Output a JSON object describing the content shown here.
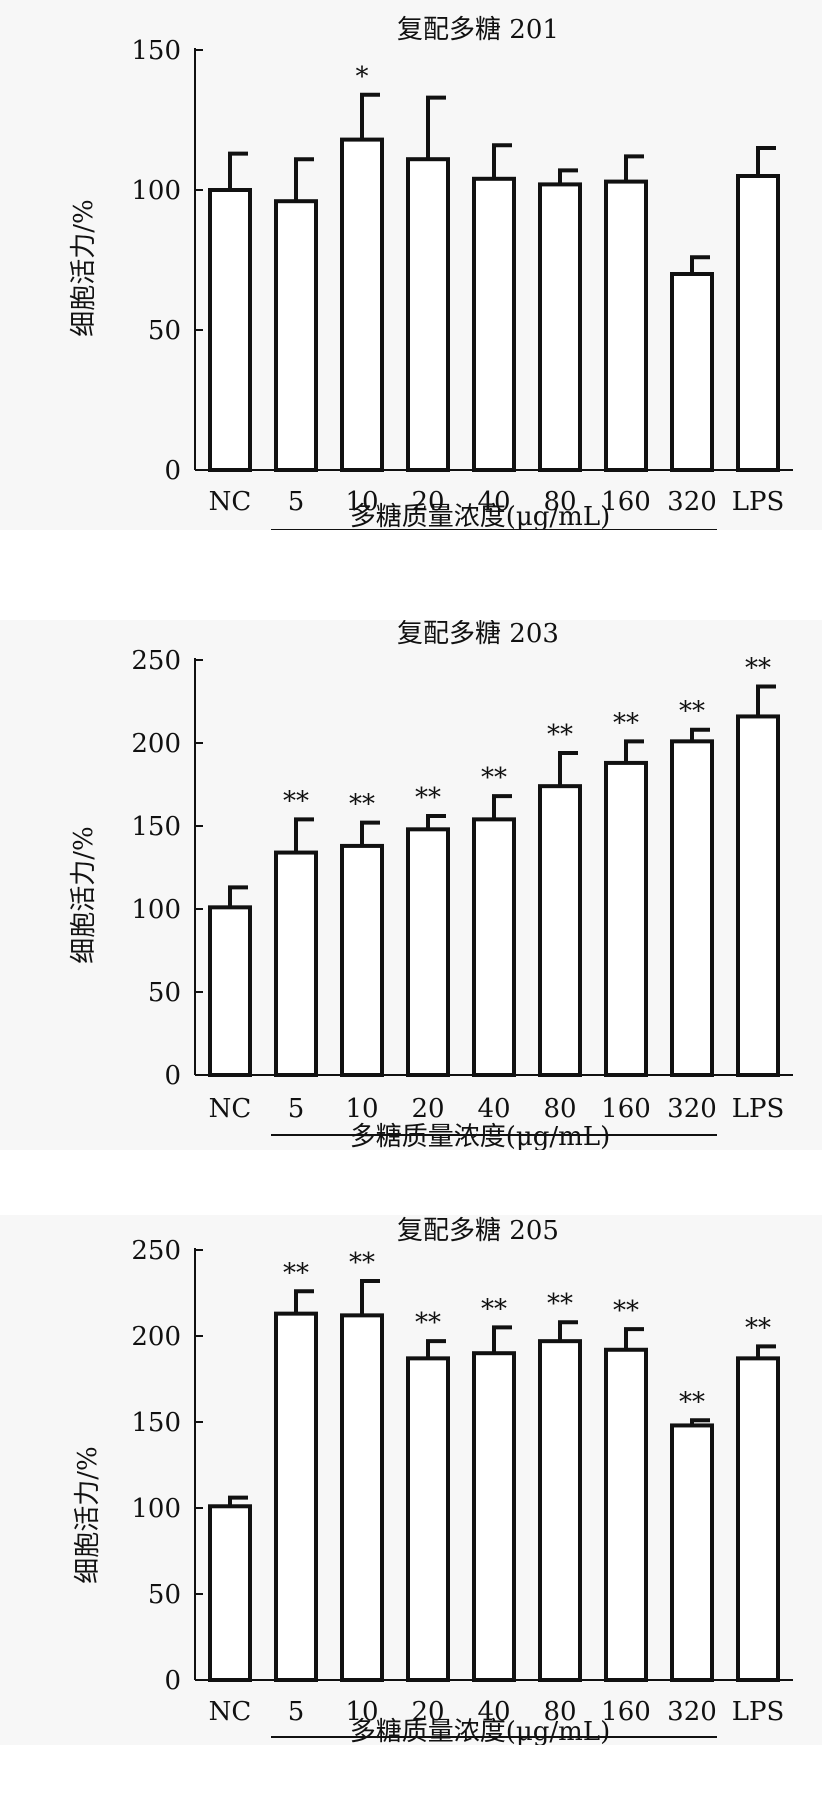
{
  "chart_data": [
    {
      "type": "bar",
      "title": "复配多糖 201",
      "ylabel": "细胞活力/%",
      "xlabel": "多糖质量浓度(μg/mL)",
      "categories": [
        "NC",
        "5",
        "10",
        "20",
        "40",
        "80",
        "160",
        "320",
        "LPS"
      ],
      "values": [
        100,
        96,
        118,
        111,
        104,
        102,
        103,
        70,
        105
      ],
      "error": [
        13,
        15,
        16,
        22,
        12,
        5,
        9,
        6,
        10
      ],
      "significance": [
        "",
        "",
        "*",
        "",
        "",
        "",
        "",
        "",
        ""
      ],
      "ylim": [
        0,
        150
      ],
      "yticks": [
        0,
        50,
        100,
        150
      ]
    },
    {
      "type": "bar",
      "title": "复配多糖 203",
      "ylabel": "细胞活力/%",
      "xlabel": "多糖质量浓度(μg/mL)",
      "categories": [
        "NC",
        "5",
        "10",
        "20",
        "40",
        "80",
        "160",
        "320",
        "LPS"
      ],
      "values": [
        101,
        134,
        138,
        148,
        154,
        174,
        188,
        201,
        216
      ],
      "error": [
        12,
        20,
        14,
        8,
        14,
        20,
        13,
        7,
        18
      ],
      "significance": [
        "",
        "**",
        "**",
        "**",
        "**",
        "**",
        "**",
        "**",
        "**"
      ],
      "ylim": [
        0,
        250
      ],
      "yticks": [
        0,
        50,
        100,
        150,
        200,
        250
      ]
    },
    {
      "type": "bar",
      "title": "复配多糖 205",
      "ylabel": "细胞活力/%",
      "xlabel": "多糖质量浓度(μg/mL)",
      "categories": [
        "NC",
        "5",
        "10",
        "20",
        "40",
        "80",
        "160",
        "320",
        "LPS"
      ],
      "values": [
        101,
        213,
        212,
        187,
        190,
        197,
        192,
        148,
        187
      ],
      "error": [
        5,
        13,
        20,
        10,
        15,
        11,
        12,
        3,
        7
      ],
      "significance": [
        "",
        "**",
        "**",
        "**",
        "**",
        "**",
        "**",
        "**",
        "**"
      ],
      "ylim": [
        0,
        250
      ],
      "yticks": [
        0,
        50,
        100,
        150,
        200,
        250
      ]
    }
  ]
}
